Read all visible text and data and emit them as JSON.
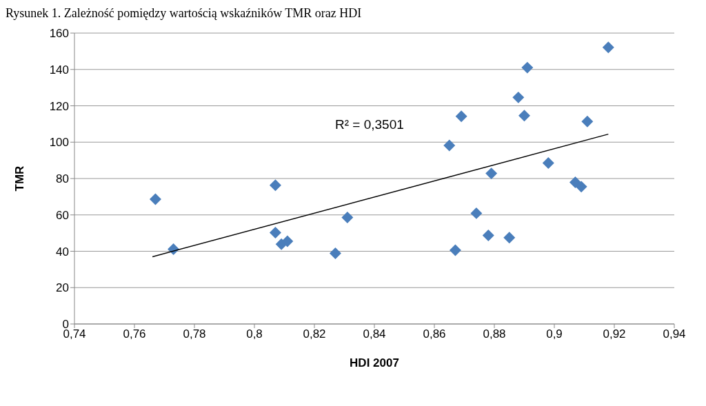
{
  "chart_data": {
    "type": "scatter",
    "title": "Rysunek 1. Zależność pomiędzy wartością wskaźników TMR oraz HDI",
    "xlabel": "HDI 2007",
    "ylabel": "TMR",
    "annotations": [
      "R² = 0,3501"
    ],
    "xlim": [
      0.74,
      0.94
    ],
    "xticks": [
      {
        "value": 0.74,
        "label": "0,74"
      },
      {
        "value": 0.76,
        "label": "0,76"
      },
      {
        "value": 0.78,
        "label": "0,78"
      },
      {
        "value": 0.8,
        "label": "0,8"
      },
      {
        "value": 0.82,
        "label": "0,82"
      },
      {
        "value": 0.84,
        "label": "0,84"
      },
      {
        "value": 0.86,
        "label": "0,86"
      },
      {
        "value": 0.88,
        "label": "0,88"
      },
      {
        "value": 0.9,
        "label": "0,9"
      },
      {
        "value": 0.92,
        "label": "0,92"
      },
      {
        "value": 0.94,
        "label": "0,94"
      }
    ],
    "ylim": [
      0,
      160
    ],
    "yticks": [
      0,
      20,
      40,
      60,
      80,
      100,
      120,
      140,
      160
    ],
    "grid": "y",
    "marker": "diamond",
    "series": [
      {
        "color": "#4a7ebb",
        "x": [
          0.767,
          0.773,
          0.807,
          0.807,
          0.809,
          0.811,
          0.827,
          0.831,
          0.918,
          0.891,
          0.888,
          0.869,
          0.89,
          0.911,
          0.865,
          0.898,
          0.879,
          0.907,
          0.909,
          0.874,
          0.878,
          0.885,
          0.867
        ],
        "values": [
          68.6,
          41.1,
          76.3,
          50.2,
          43.9,
          45.5,
          38.9,
          58.6,
          152.1,
          141,
          124.6,
          114.2,
          114.6,
          111.4,
          98.2,
          88.5,
          82.8,
          77.9,
          75.5,
          60.9,
          48.7,
          47.5,
          40.6
        ]
      },
      {
        "type": "line",
        "marker": "none",
        "color": "#000000",
        "x": [
          0.766,
          0.918
        ],
        "values": [
          37,
          104.4
        ]
      }
    ]
  }
}
